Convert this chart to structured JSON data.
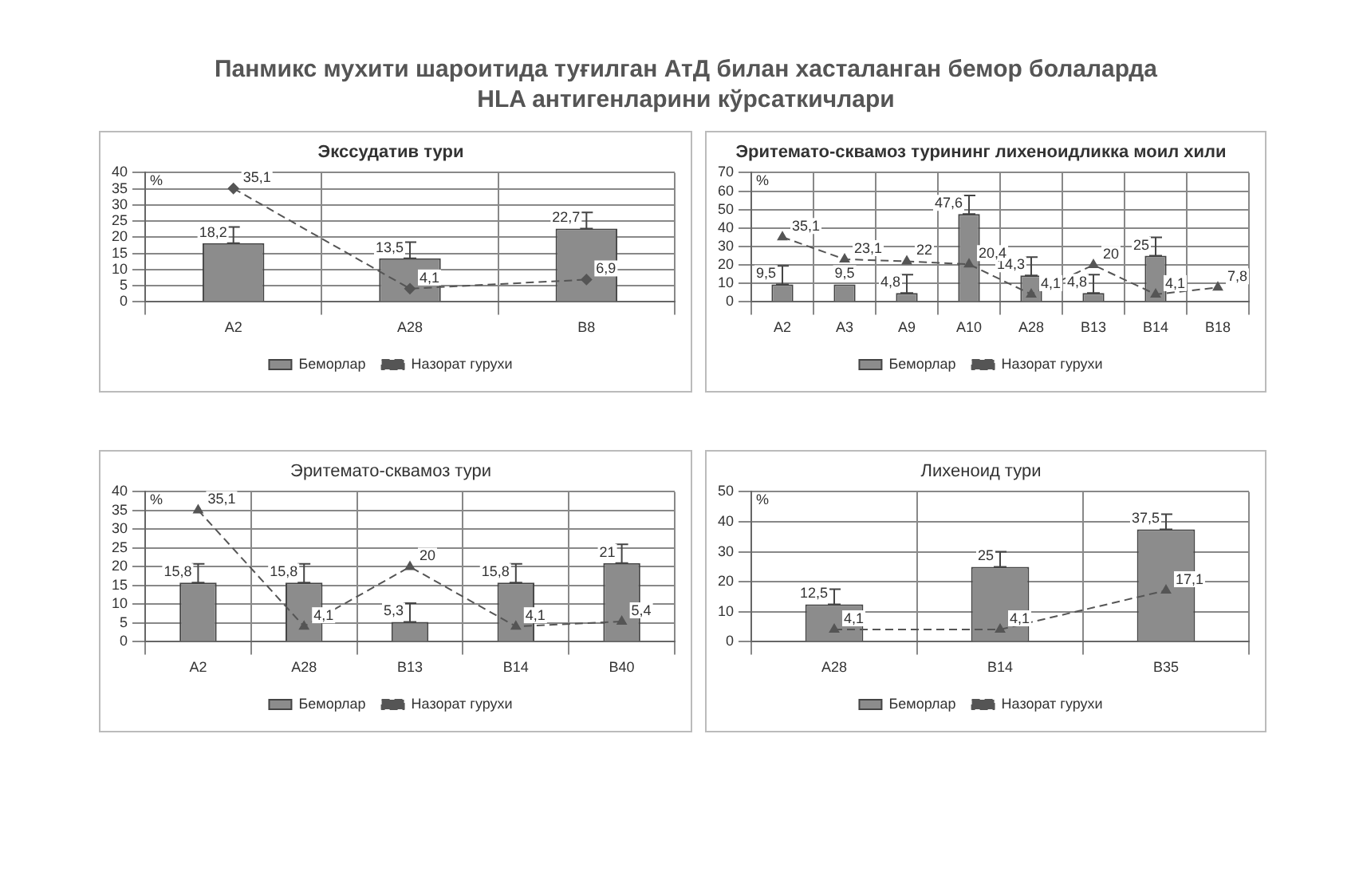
{
  "chart_data": [
    {
      "type": "bar",
      "title": "Экссудатив тури",
      "ylabel": "%",
      "annotations": [
        "Панмикс мухити шароитида туғилган АтД билан хасталанган бемор болаларда HLA антигенларини кўрсаткичлари"
      ],
      "categories": [
        "A2",
        "A28",
        "B8"
      ],
      "series": [
        {
          "name": "Беморлар",
          "type": "bar",
          "color": "#8c8c8c",
          "values": [
            18.2,
            13.5,
            22.7
          ],
          "errors": [
            [
              18.2,
              23.2
            ],
            [
              13.5,
              18.5
            ],
            [
              22.7,
              27.7
            ]
          ],
          "value_labels": [
            "18,2",
            "13,5",
            "22,7"
          ]
        },
        {
          "name": "Назорат гурухи",
          "type": "line",
          "color": "#555555",
          "values": [
            35.1,
            4.1,
            6.9
          ],
          "value_labels": [
            "35,1",
            "4,1",
            "6,9"
          ]
        }
      ],
      "ylim": [
        0,
        40
      ],
      "yticks": [
        0,
        5,
        10,
        15,
        20,
        25,
        30,
        35,
        40
      ],
      "grid": true,
      "legend": "bottom",
      "marker": "diamond",
      "line_style": "dashed"
    },
    {
      "type": "bar",
      "title": "Эритемато-сквамоз турининг лихеноидликка моил хили",
      "ylabel": "%",
      "categories": [
        "A2",
        "A3",
        "A9",
        "A10",
        "A28",
        "B13",
        "B14",
        "B18"
      ],
      "series": [
        {
          "name": "Беморлар",
          "type": "bar",
          "color": "#8c8c8c",
          "values": [
            9.5,
            9.5,
            4.8,
            47.6,
            14.3,
            4.8,
            25,
            null
          ],
          "errors": [
            [
              9.5,
              19.5
            ],
            null,
            [
              4.8,
              14.8
            ],
            [
              47.6,
              57.6
            ],
            [
              14.3,
              24.3
            ],
            [
              4.8,
              14.8
            ],
            [
              25,
              35
            ],
            null
          ],
          "value_labels": [
            "9,5",
            "9,5",
            "4,8",
            "47,6",
            "14,3",
            "4,8",
            "25",
            null
          ]
        },
        {
          "name": "Назорат гурухи",
          "type": "line",
          "color": "#555555",
          "values": [
            35.1,
            23.1,
            22,
            20.4,
            4.1,
            20,
            4.1,
            7.8
          ],
          "value_labels": [
            "35,1",
            "23,1",
            "22",
            "20,4",
            "4,1",
            "20",
            "4,1",
            "7,8"
          ]
        }
      ],
      "ylim": [
        0,
        70
      ],
      "yticks": [
        0,
        10,
        20,
        30,
        40,
        50,
        60,
        70
      ],
      "grid": true,
      "legend": "bottom",
      "marker": "triangle",
      "line_style": "dashed"
    },
    {
      "type": "bar",
      "title": "Эритемато-сквамоз тури",
      "ylabel": "%",
      "categories": [
        "A2",
        "A28",
        "B13",
        "B14",
        "B40"
      ],
      "series": [
        {
          "name": "Беморлар",
          "type": "bar",
          "color": "#8c8c8c",
          "values": [
            15.8,
            15.8,
            5.3,
            15.8,
            21
          ],
          "errors": [
            [
              15.8,
              20.8
            ],
            [
              15.8,
              20.8
            ],
            [
              5.3,
              10.3
            ],
            [
              15.8,
              20.8
            ],
            [
              21,
              26
            ]
          ],
          "value_labels": [
            "15,8",
            "15,8",
            "5,3",
            "15,8",
            "21"
          ]
        },
        {
          "name": "Назорат гурухи",
          "type": "line",
          "color": "#555555",
          "values": [
            35.1,
            4.1,
            20,
            4.1,
            5.4
          ],
          "value_labels": [
            "35,1",
            "4,1",
            "20",
            "4,1",
            "5,4"
          ]
        }
      ],
      "ylim": [
        0,
        40
      ],
      "yticks": [
        0,
        5,
        10,
        15,
        20,
        25,
        30,
        35,
        40
      ],
      "grid": true,
      "legend": "bottom",
      "marker": "triangle",
      "line_style": "dashed"
    },
    {
      "type": "bar",
      "title": "Лихеноид тури",
      "ylabel": "%",
      "categories": [
        "A28",
        "B14",
        "B35"
      ],
      "series": [
        {
          "name": "Беморлар",
          "type": "bar",
          "color": "#8c8c8c",
          "values": [
            12.5,
            25,
            37.5
          ],
          "errors": [
            [
              12.5,
              17.5
            ],
            [
              25,
              30
            ],
            [
              37.5,
              42.5
            ]
          ],
          "value_labels": [
            "12,5",
            "25",
            "37,5"
          ]
        },
        {
          "name": "Назорат гурухи",
          "type": "line",
          "color": "#555555",
          "values": [
            4.1,
            4.1,
            17.1
          ],
          "value_labels": [
            "4,1",
            "4,1",
            "17,1"
          ]
        }
      ],
      "ylim": [
        0,
        50
      ],
      "yticks": [
        0,
        10,
        20,
        30,
        40,
        50
      ],
      "grid": true,
      "legend": "bottom",
      "marker": "triangle",
      "line_style": "dashed"
    }
  ]
}
